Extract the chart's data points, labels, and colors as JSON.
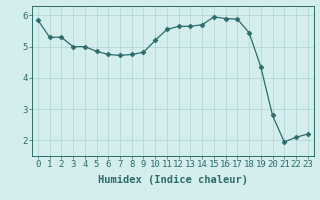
{
  "x": [
    0,
    1,
    2,
    3,
    4,
    5,
    6,
    7,
    8,
    9,
    10,
    11,
    12,
    13,
    14,
    15,
    16,
    17,
    18,
    19,
    20,
    21,
    22,
    23
  ],
  "y": [
    5.85,
    5.3,
    5.3,
    5.0,
    5.0,
    4.85,
    4.75,
    4.72,
    4.75,
    4.82,
    5.2,
    5.55,
    5.65,
    5.65,
    5.7,
    5.95,
    5.9,
    5.88,
    5.45,
    4.35,
    2.8,
    1.95,
    2.1,
    2.2
  ],
  "line_color": "#2d6b6b",
  "marker": "D",
  "marker_size": 2.5,
  "bg_color": "#d4eeee",
  "grid_color": "#aed4d4",
  "xlabel": "Humidex (Indice chaleur)",
  "ylim": [
    1.5,
    6.3
  ],
  "xlim": [
    -0.5,
    23.5
  ],
  "yticks": [
    2,
    3,
    4,
    5,
    6
  ],
  "xticks": [
    0,
    1,
    2,
    3,
    4,
    5,
    6,
    7,
    8,
    9,
    10,
    11,
    12,
    13,
    14,
    15,
    16,
    17,
    18,
    19,
    20,
    21,
    22,
    23
  ],
  "tick_color": "#2d6b6b",
  "label_color": "#2d6b6b",
  "font_size": 6.5,
  "xlabel_fontsize": 7.5
}
